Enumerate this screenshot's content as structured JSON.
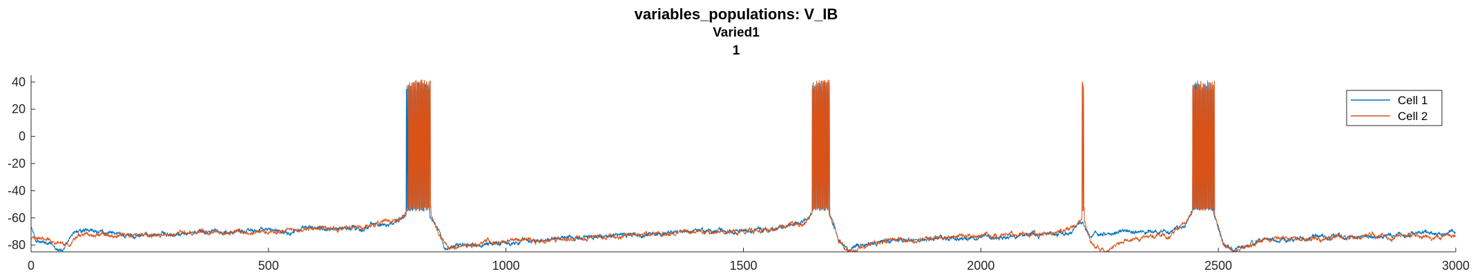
{
  "colors": {
    "cell1": "#0072BD",
    "cell2": "#D95319",
    "axis": "#262626",
    "background": "#ffffff"
  },
  "chart_data": {
    "type": "line",
    "title": "variables_populations: V_IB",
    "subtitle": "Varied1",
    "subtitle2": "1",
    "xlabel": "",
    "ylabel": "",
    "xlim": [
      0,
      3000
    ],
    "ylim": [
      -85,
      45
    ],
    "xticks": [
      0,
      500,
      1000,
      1500,
      2000,
      2500,
      3000
    ],
    "yticks": [
      -80,
      -60,
      -40,
      -20,
      0,
      20,
      40
    ],
    "grid": false,
    "legend_position": "top-right",
    "series": [
      {
        "name": "Cell 1",
        "color": "#0072BD",
        "baseline_points": [
          [
            0,
            -66
          ],
          [
            10,
            -77
          ],
          [
            70,
            -84
          ],
          [
            90,
            -70
          ],
          [
            200,
            -73
          ],
          [
            400,
            -70
          ],
          [
            600,
            -68
          ],
          [
            700,
            -67
          ],
          [
            770,
            -62
          ],
          [
            790,
            -56
          ],
          [
            840,
            -58
          ],
          [
            860,
            -70
          ],
          [
            870,
            -82
          ],
          [
            900,
            -80
          ],
          [
            1000,
            -78
          ],
          [
            1200,
            -74
          ],
          [
            1400,
            -70
          ],
          [
            1550,
            -69
          ],
          [
            1620,
            -65
          ],
          [
            1645,
            -57
          ],
          [
            1680,
            -56
          ],
          [
            1700,
            -75
          ],
          [
            1720,
            -84
          ],
          [
            1800,
            -77
          ],
          [
            2000,
            -74
          ],
          [
            2150,
            -72
          ],
          [
            2190,
            -70
          ],
          [
            2215,
            -62
          ],
          [
            2230,
            -75
          ],
          [
            2300,
            -70
          ],
          [
            2400,
            -70
          ],
          [
            2430,
            -66
          ],
          [
            2445,
            -57
          ],
          [
            2490,
            -57
          ],
          [
            2510,
            -78
          ],
          [
            2530,
            -84
          ],
          [
            2600,
            -76
          ],
          [
            2800,
            -74
          ],
          [
            3000,
            -70
          ]
        ],
        "bursts": [
          [
            790,
            840
          ],
          [
            1645,
            1680
          ],
          [
            2445,
            2490
          ]
        ],
        "burst_range": [
          -55,
          40
        ]
      },
      {
        "name": "Cell 2",
        "color": "#D95319",
        "baseline_points": [
          [
            0,
            -75
          ],
          [
            60,
            -78
          ],
          [
            80,
            -80
          ],
          [
            100,
            -71
          ],
          [
            200,
            -73
          ],
          [
            400,
            -71
          ],
          [
            600,
            -69
          ],
          [
            700,
            -67
          ],
          [
            780,
            -62
          ],
          [
            795,
            -55
          ],
          [
            840,
            -56
          ],
          [
            860,
            -72
          ],
          [
            880,
            -83
          ],
          [
            900,
            -80
          ],
          [
            1000,
            -77
          ],
          [
            1200,
            -74
          ],
          [
            1400,
            -71
          ],
          [
            1550,
            -69
          ],
          [
            1630,
            -64
          ],
          [
            1645,
            -55
          ],
          [
            1680,
            -55
          ],
          [
            1700,
            -76
          ],
          [
            1720,
            -84
          ],
          [
            1800,
            -77
          ],
          [
            2000,
            -73
          ],
          [
            2150,
            -71
          ],
          [
            2200,
            -66
          ],
          [
            2215,
            -62
          ],
          [
            2235,
            -80
          ],
          [
            2260,
            -84
          ],
          [
            2300,
            -77
          ],
          [
            2400,
            -72
          ],
          [
            2430,
            -64
          ],
          [
            2445,
            -55
          ],
          [
            2490,
            -55
          ],
          [
            2510,
            -78
          ],
          [
            2530,
            -85
          ],
          [
            2600,
            -76
          ],
          [
            2800,
            -74
          ],
          [
            3000,
            -73
          ]
        ],
        "bursts": [
          [
            795,
            842
          ],
          [
            1645,
            1682
          ],
          [
            2213,
            2218
          ],
          [
            2445,
            2492
          ]
        ],
        "burst_range": [
          -55,
          42
        ]
      }
    ]
  }
}
